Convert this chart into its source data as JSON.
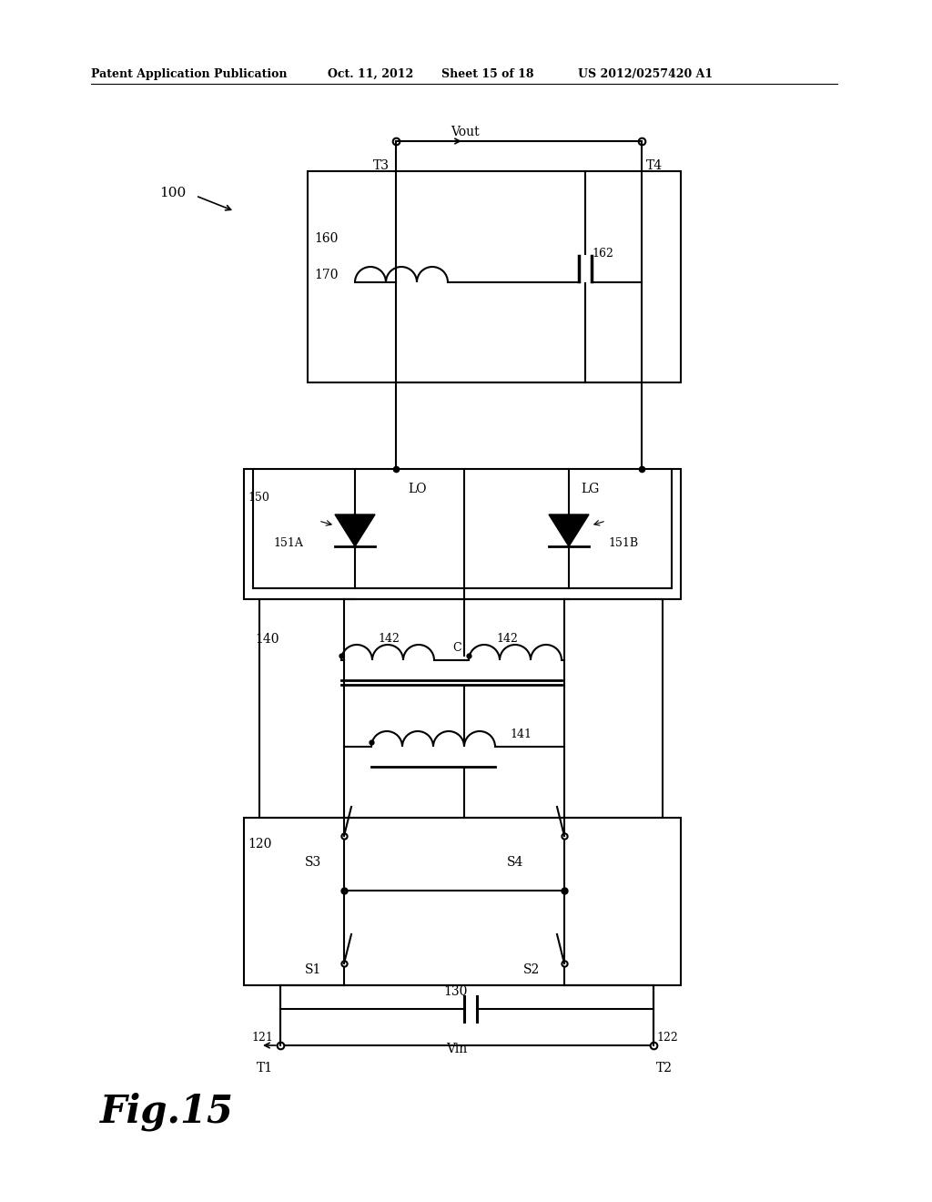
{
  "bg_color": "#ffffff",
  "header_left": "Patent Application Publication",
  "header_date": "Oct. 11, 2012",
  "header_sheet": "Sheet 15 of 18",
  "header_patent": "US 2012/0257420 A1",
  "fig_label": "Fig.15"
}
